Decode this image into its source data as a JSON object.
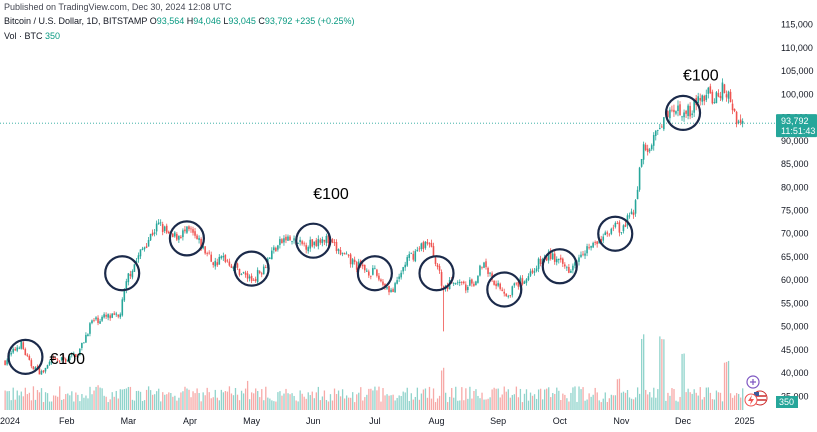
{
  "header": {
    "published": "Published on TradingView.com, Dec 30, 2024 12:08 UTC",
    "symbol": "Bitcoin / U.S. Dollar, 1D, BITSTAMP",
    "open_label": "O",
    "open": "93,564",
    "high_label": "H",
    "high": "94,046",
    "low_label": "L",
    "low": "93,045",
    "close_label": "C",
    "close": "93,792",
    "change": "+235 (+0.25%)",
    "volume_label": "Vol · BTC",
    "volume": "350"
  },
  "price_tag": {
    "price": "93,792",
    "countdown": "11:51:43",
    "volume_tag": "350"
  },
  "colors": {
    "up": "#26a69a",
    "down": "#ef5350",
    "up_vol": "#8fd3cb",
    "down_vol": "#f7a9a7",
    "price_line": "#26a69a",
    "circle": "#1b2a4a"
  },
  "icons": [
    "plus-circle-icon",
    "us-flag-icon",
    "lightning-icon"
  ],
  "chart_data": {
    "type": "candlestick",
    "y_ticks": [
      "115,000",
      "110,000",
      "105,000",
      "100,000",
      "95,000",
      "90,000",
      "85,000",
      "80,000",
      "75,000",
      "70,000",
      "65,000",
      "60,000",
      "55,000",
      "50,000",
      "45,000",
      "40,000",
      "35,000"
    ],
    "ylim": [
      32500,
      117500
    ],
    "x_ticks": [
      {
        "label": "2024",
        "month": 0
      },
      {
        "label": "Feb",
        "month": 1
      },
      {
        "label": "Mar",
        "month": 2
      },
      {
        "label": "Apr",
        "month": 3
      },
      {
        "label": "May",
        "month": 4
      },
      {
        "label": "Jun",
        "month": 5
      },
      {
        "label": "Jul",
        "month": 6
      },
      {
        "label": "Aug",
        "month": 7
      },
      {
        "label": "Sep",
        "month": 8
      },
      {
        "label": "Oct",
        "month": 9
      },
      {
        "label": "Nov",
        "month": 10
      },
      {
        "label": "Dec",
        "month": 11
      },
      {
        "label": "2025",
        "month": 12
      }
    ],
    "close_path": [
      [
        0.0,
        42500
      ],
      [
        0.25,
        46500
      ],
      [
        0.4,
        42000
      ],
      [
        0.6,
        40000
      ],
      [
        0.75,
        42500
      ],
      [
        1.0,
        43000
      ],
      [
        1.2,
        44500
      ],
      [
        1.4,
        51000
      ],
      [
        1.6,
        52000
      ],
      [
        1.85,
        52000
      ],
      [
        2.0,
        61000
      ],
      [
        2.2,
        66000
      ],
      [
        2.4,
        70500
      ],
      [
        2.5,
        72000
      ],
      [
        2.7,
        69000
      ],
      [
        2.85,
        70000
      ],
      [
        3.0,
        70500
      ],
      [
        3.2,
        67000
      ],
      [
        3.4,
        63500
      ],
      [
        3.55,
        65000
      ],
      [
        3.75,
        62500
      ],
      [
        4.0,
        60000
      ],
      [
        4.15,
        62000
      ],
      [
        4.35,
        66500
      ],
      [
        4.55,
        69000
      ],
      [
        4.8,
        67500
      ],
      [
        5.0,
        68000
      ],
      [
        5.15,
        69500
      ],
      [
        5.35,
        67000
      ],
      [
        5.55,
        64500
      ],
      [
        5.8,
        62500
      ],
      [
        6.0,
        61500
      ],
      [
        6.15,
        59000
      ],
      [
        6.3,
        57500
      ],
      [
        6.5,
        64000
      ],
      [
        6.7,
        66500
      ],
      [
        6.85,
        68500
      ],
      [
        7.0,
        64000
      ],
      [
        7.1,
        58000
      ],
      [
        7.25,
        60000
      ],
      [
        7.45,
        58500
      ],
      [
        7.6,
        59500
      ],
      [
        7.75,
        64000
      ],
      [
        7.9,
        60500
      ],
      [
        8.0,
        59000
      ],
      [
        8.15,
        57000
      ],
      [
        8.3,
        59000
      ],
      [
        8.45,
        60500
      ],
      [
        8.65,
        63500
      ],
      [
        8.85,
        65500
      ],
      [
        9.0,
        63500
      ],
      [
        9.15,
        62500
      ],
      [
        9.35,
        66500
      ],
      [
        9.55,
        67500
      ],
      [
        9.75,
        69500
      ],
      [
        9.85,
        72000
      ],
      [
        10.0,
        70500
      ],
      [
        10.2,
        75000
      ],
      [
        10.35,
        88000
      ],
      [
        10.5,
        89500
      ],
      [
        10.65,
        93000
      ],
      [
        10.8,
        98000
      ],
      [
        11.0,
        96500
      ],
      [
        11.15,
        97000
      ],
      [
        11.35,
        100000
      ],
      [
        11.55,
        99000
      ],
      [
        11.65,
        101500
      ],
      [
        11.8,
        97500
      ],
      [
        11.9,
        94000
      ],
      [
        12.0,
        94000
      ]
    ],
    "current_price": 93792,
    "volume_levels": [
      0.22,
      0.35,
      0.55,
      1.0
    ],
    "volume_spikes": [
      {
        "month": 7.1,
        "level": 0.55
      },
      {
        "month": 9.95,
        "level": 0.35
      },
      {
        "month": 10.35,
        "level": 0.9
      },
      {
        "month": 10.65,
        "level": 1.0
      },
      {
        "month": 11.0,
        "level": 0.8
      },
      {
        "month": 11.7,
        "level": 0.6
      }
    ],
    "annotations": [
      {
        "text": "€100",
        "month": 0.72,
        "price": 42000
      },
      {
        "text": "€100",
        "month": 5.0,
        "price": 77500
      },
      {
        "text": "€100",
        "month": 11.0,
        "price": 103000
      }
    ],
    "circles": [
      {
        "month": 0.33,
        "price": 43500
      },
      {
        "month": 1.9,
        "price": 61500
      },
      {
        "month": 2.95,
        "price": 69000
      },
      {
        "month": 4.0,
        "price": 62500
      },
      {
        "month": 5.0,
        "price": 68500
      },
      {
        "month": 6.0,
        "price": 61500
      },
      {
        "month": 7.0,
        "price": 61500
      },
      {
        "month": 8.1,
        "price": 58000
      },
      {
        "month": 9.0,
        "price": 63000
      },
      {
        "month": 9.9,
        "price": 70000
      },
      {
        "month": 11.0,
        "price": 96000
      }
    ]
  }
}
